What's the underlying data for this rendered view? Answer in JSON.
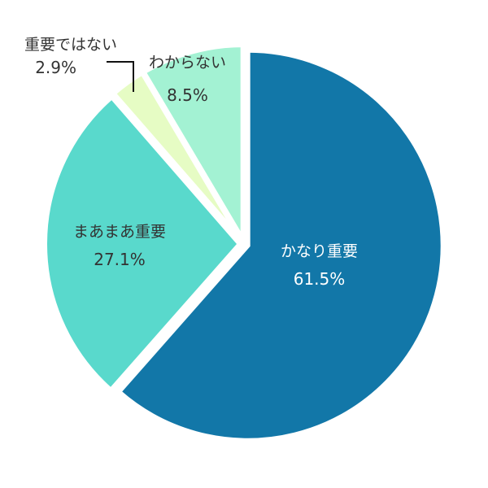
{
  "chart_data": {
    "type": "pie",
    "title": "",
    "start_angle_deg": 0,
    "direction": "clockwise",
    "slices": [
      {
        "label": "かなり重要",
        "value": 61.5,
        "display": "61.5%",
        "color": "#1277a8",
        "text_color": "#ffffff"
      },
      {
        "label": "まあまあ重要",
        "value": 27.1,
        "display": "27.1%",
        "color": "#59d9cc",
        "text_color": "#333333"
      },
      {
        "label": "重要ではない",
        "value": 2.9,
        "display": "2.9%",
        "color": "#e6fcc4",
        "text_color": "#333333"
      },
      {
        "label": "わからない",
        "value": 8.5,
        "display": "8.5%",
        "color": "#a3f2d3",
        "text_color": "#333333"
      }
    ]
  },
  "labels": {
    "kanari": {
      "name": "かなり重要",
      "pct": "61.5%"
    },
    "maamaa": {
      "name": "まあまあ重要",
      "pct": "27.1%"
    },
    "juuyou_dewanai": {
      "name": "重要ではない",
      "pct": "2.9%"
    },
    "wakaranai": {
      "name": "わからない",
      "pct": "8.5%"
    }
  }
}
